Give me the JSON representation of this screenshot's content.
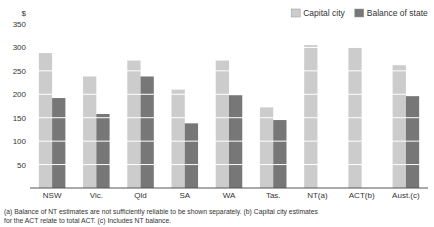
{
  "chart_data": {
    "type": "bar",
    "categories": [
      "NSW",
      "Vic.",
      "Qld",
      "SA",
      "WA",
      "Tas.",
      "NT(a)",
      "ACT(b)",
      "Aust.(c)"
    ],
    "series": [
      {
        "name": "Capital city",
        "color": "#cccccc",
        "values": [
          288,
          238,
          272,
          210,
          272,
          172,
          305,
          300,
          262
        ]
      },
      {
        "name": "Balance of state",
        "color": "#777777",
        "values": [
          192,
          158,
          238,
          138,
          198,
          145,
          null,
          null,
          196
        ]
      }
    ],
    "y_label": "$",
    "ylim": [
      0,
      350
    ],
    "yticks": [
      50,
      100,
      150,
      200,
      250,
      300,
      350
    ],
    "grid": false,
    "legend": "upper right",
    "annotations": [
      "(a) Balance of NT estimates are not sufficiently reliable to be shown separately. (b) Capital city estimates\nfor the ACT relate to total ACT. (c) Includes NT balance."
    ]
  }
}
